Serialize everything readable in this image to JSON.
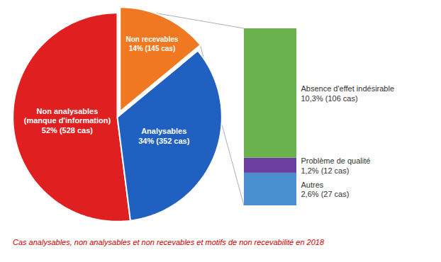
{
  "chart_data": [
    {
      "type": "pie",
      "title": "Cas analysables, non analysables et non recevables et motifs de non recevabilité en 2018",
      "categories": [
        "Non analysables\n(manque d'information)",
        "Analysables",
        "Non recevables"
      ],
      "values": [
        52,
        34,
        14
      ],
      "value_labels": [
        "52% (528 cas)",
        "34% (352 cas)",
        "14% (145 cas)"
      ],
      "colors": [
        "#e02020",
        "#2060c0",
        "#f07820"
      ],
      "data_labels": true
    },
    {
      "type": "bar",
      "stacked": true,
      "categories": [
        null
      ],
      "series": [
        {
          "name": "Absence d'effet indésirable",
          "color": "#6ab04c",
          "values": [
            10.3
          ],
          "value_labels": [
            "10,3% (106 cas)"
          ]
        },
        {
          "name": "Problème de qualité",
          "color": "#6a3fa0",
          "values": [
            1.2
          ],
          "value_labels": [
            "1,2% (12 cas)"
          ]
        },
        {
          "name": "Autres",
          "color": "#4a90d0",
          "values": [
            2.6
          ],
          "value_labels": [
            "2,6% (27 cas)"
          ]
        }
      ],
      "ylim": [
        0,
        14.1
      ],
      "tick_labels": false,
      "data_labels": true
    }
  ]
}
